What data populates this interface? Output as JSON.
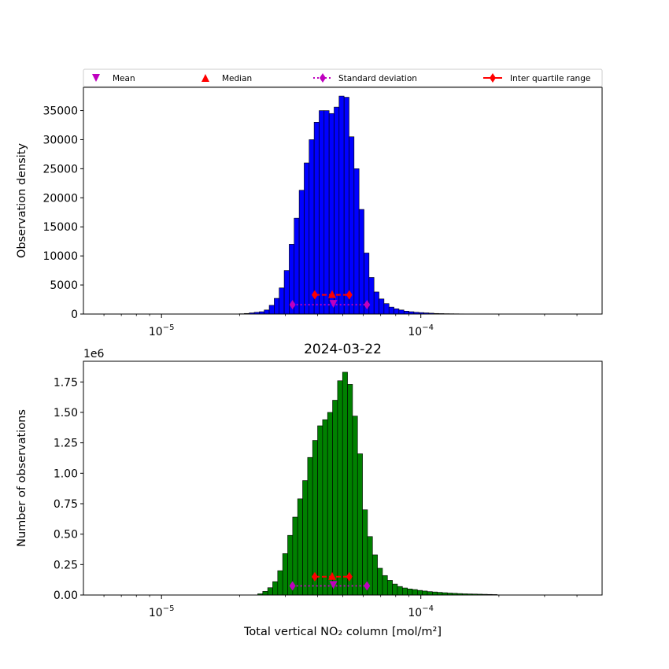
{
  "chart_data": {
    "type": "bar",
    "x_scale": "log",
    "xlim": [
      5e-06,
      0.0005
    ],
    "xlabel": "Total vertical NO₂ column [mol/m²]",
    "x_ticks": [
      {
        "value": 1e-05,
        "base": "10",
        "exp": "−5"
      },
      {
        "value": 0.0001,
        "base": "10",
        "exp": "−4"
      }
    ],
    "legend": {
      "placement": "top",
      "entries": [
        {
          "label": "Mean",
          "marker": "triangle-down",
          "color": "#bf00bf"
        },
        {
          "label": "Median",
          "marker": "triangle-up",
          "color": "#ff0000"
        },
        {
          "label": "Standard deviation",
          "marker": "diamond",
          "line": "dotted",
          "color": "#bf00bf"
        },
        {
          "label": "Inter quartile range",
          "marker": "diamond",
          "line": "solid",
          "color": "#ff0000"
        }
      ]
    },
    "panels": [
      {
        "id": "top",
        "title": "",
        "ylabel": "Observation density",
        "ylim": [
          0,
          39000
        ],
        "yticks": [
          0,
          5000,
          10000,
          15000,
          20000,
          25000,
          30000,
          35000
        ],
        "ytick_labels": [
          "0",
          "5000",
          "10000",
          "15000",
          "20000",
          "25000",
          "30000",
          "35000"
        ],
        "offset_label": "",
        "bar_color": "#0000ff",
        "bin_edges_start": 1.995e-05,
        "bin_ratio": 1.0453,
        "values": [
          50,
          100,
          200,
          300,
          400,
          700,
          1500,
          2700,
          4500,
          7500,
          12000,
          16500,
          21300,
          26000,
          30000,
          33000,
          35000,
          35000,
          34500,
          35600,
          37500,
          37300,
          30500,
          25000,
          18000,
          10500,
          6300,
          3800,
          2600,
          1800,
          1200,
          900,
          700,
          500,
          400,
          300,
          250,
          200,
          150,
          100,
          80,
          60,
          50,
          40,
          30
        ],
        "stats": {
          "iqr": {
            "x": [
              3.9e-05,
              5.3e-05
            ],
            "y": 3300,
            "median_x": 4.55e-05
          },
          "std": {
            "x": [
              3.2e-05,
              6.2e-05
            ],
            "y": 1600,
            "mean_x": 4.6e-05
          }
        }
      },
      {
        "id": "bottom",
        "title": "2024-03-22",
        "ylabel": "Number of observations",
        "ylim": [
          0,
          1920000
        ],
        "yticks": [
          0,
          250000,
          500000,
          750000,
          1000000,
          1250000,
          1500000,
          1750000
        ],
        "ytick_labels": [
          "0.00",
          "0.25",
          "0.50",
          "0.75",
          "1.00",
          "1.25",
          "1.50",
          "1.75"
        ],
        "offset_label": "1e6",
        "bar_color": "#008000",
        "bin_edges_start": 2.35e-05,
        "bin_ratio": 1.0453,
        "values": [
          10000,
          30000,
          60000,
          110000,
          200000,
          340000,
          490000,
          640000,
          790000,
          940000,
          1130000,
          1270000,
          1390000,
          1440000,
          1500000,
          1600000,
          1760000,
          1830000,
          1730000,
          1470000,
          1160000,
          700000,
          480000,
          330000,
          220000,
          160000,
          120000,
          90000,
          70000,
          58000,
          50000,
          45000,
          38000,
          33000,
          28000,
          25000,
          22000,
          19000,
          16000,
          14000,
          12000,
          10000,
          9000,
          8000,
          7000,
          6000,
          5000,
          4000
        ],
        "stats": {
          "iqr": {
            "x": [
              3.9e-05,
              5.3e-05
            ],
            "y": 150000,
            "median_x": 4.55e-05
          },
          "std": {
            "x": [
              3.2e-05,
              6.2e-05
            ],
            "y": 75000,
            "mean_x": 4.6e-05
          }
        }
      }
    ]
  }
}
